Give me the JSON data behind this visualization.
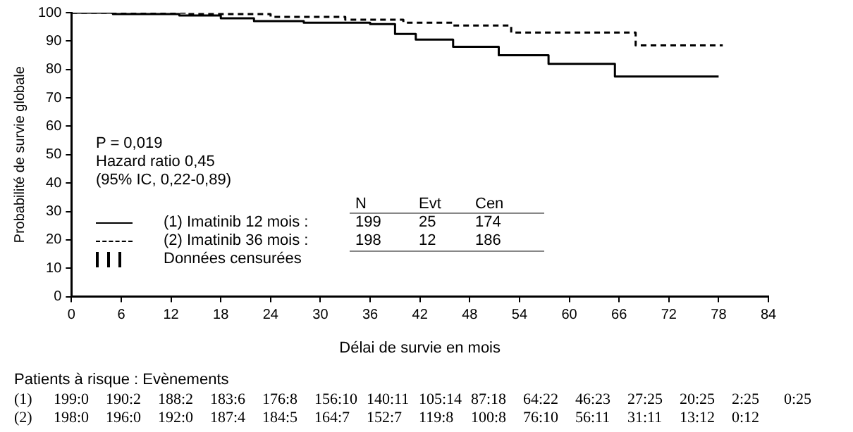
{
  "chart_data": {
    "type": "step",
    "xlabel": "Délai de survie en mois",
    "ylabel": "Probabilité de survie globale",
    "xlim": [
      0,
      84
    ],
    "xticks": [
      0,
      6,
      12,
      18,
      24,
      30,
      36,
      42,
      48,
      54,
      60,
      66,
      72,
      78,
      84
    ],
    "ylim": [
      0,
      100
    ],
    "yticks": [
      0,
      10,
      20,
      30,
      40,
      50,
      60,
      70,
      80,
      90,
      100
    ],
    "grid": false,
    "legend": "left",
    "series": [
      {
        "name": "(1) Imatinib 12 mois :",
        "color": "#000000",
        "line_style": "solid",
        "x": [
          0,
          5,
          13,
          18,
          22,
          28,
          36,
          39,
          41.5,
          46,
          51.5,
          57.5,
          65.5,
          78
        ],
        "values": [
          100,
          99.5,
          99,
          98,
          97,
          96.5,
          96,
          92.5,
          90.5,
          88,
          85,
          82,
          77.5,
          77.5
        ]
      },
      {
        "name": "(2) Imatinib 36 mois :",
        "color": "#000000",
        "line_style": "dashed",
        "x": [
          0,
          14,
          24,
          33,
          40,
          46,
          53,
          68,
          78.5
        ],
        "values": [
          100,
          99.5,
          98.5,
          97.5,
          96.5,
          95.5,
          93,
          88.5,
          88.5
        ]
      }
    ],
    "annotations": [
      "P = 0,019",
      "Hazard ratio 0,45",
      "(95% IC, 0,22-0,89)",
      "N Evt Cen",
      "199 25 174",
      "198 12 186",
      "Données censurées",
      "Patients à risque : Evènements",
      "(1) 199:0 190:2 188:2 183:6 176:8 156:10 140:11 105:14 87:18 64:22 46:23 27:25 20:25 2:25 0:25",
      "(2) 198:0 196:0 192:0 187:4 184:5 164:7 152:7 119:8 100:8 76:10 56:11 31:11 13:12 0:12"
    ]
  }
}
